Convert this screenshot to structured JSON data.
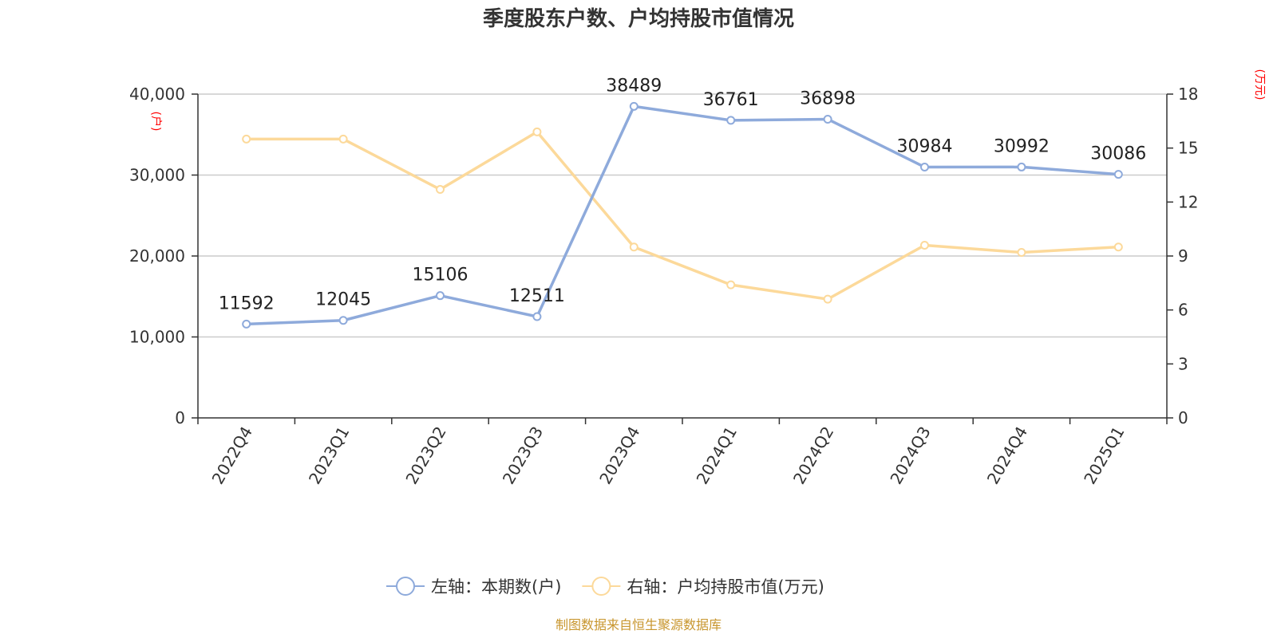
{
  "chart_data": {
    "type": "line",
    "title": "季度股东户数、户均持股市值情况",
    "categories": [
      "2022Q4",
      "2023Q1",
      "2023Q2",
      "2023Q3",
      "2023Q4",
      "2024Q1",
      "2024Q2",
      "2024Q3",
      "2024Q4",
      "2025Q1"
    ],
    "series": [
      {
        "name": "左轴：本期数(户)",
        "axis": "left",
        "color": "#8eaadb",
        "values": [
          11592,
          12045,
          15106,
          12511,
          38489,
          36761,
          36898,
          30984,
          30992,
          30086
        ],
        "show_labels": true
      },
      {
        "name": "右轴：户均持股市值(万元)",
        "axis": "right",
        "color": "#fcd99a",
        "values": [
          15.5,
          15.5,
          12.7,
          15.9,
          9.5,
          7.4,
          6.6,
          9.6,
          9.2,
          9.5
        ],
        "show_labels": false
      }
    ],
    "y_left": {
      "unit": "(户)",
      "ylim": [
        0,
        40000
      ],
      "ticks": [
        0,
        10000,
        20000,
        30000,
        40000
      ],
      "tick_labels": [
        "0",
        "10,000",
        "20,000",
        "30,000",
        "40,000"
      ]
    },
    "y_right": {
      "unit": "(万元)",
      "ylim": [
        0,
        18
      ],
      "ticks": [
        0,
        3,
        6,
        9,
        12,
        15,
        18
      ],
      "tick_labels": [
        "0",
        "3",
        "6",
        "9",
        "12",
        "15",
        "18"
      ]
    },
    "grid": true,
    "legend_position": "bottom-center",
    "unit_color": "#ff0000",
    "axis_color": "#333333",
    "grid_color": "#cccccc"
  },
  "source": {
    "text": "制图数据来自恒生聚源数据库",
    "color": "#c8962e"
  }
}
